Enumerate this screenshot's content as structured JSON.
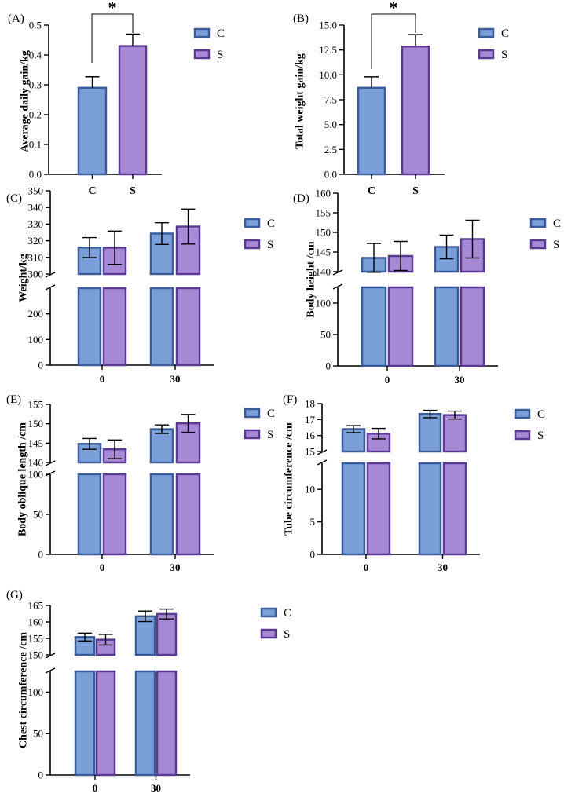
{
  "chart_data": [
    {
      "panel": "(A)",
      "type": "bar",
      "ylabel": "Average daily gain/kg",
      "categories": [
        "C",
        "S"
      ],
      "values": [
        0.29,
        0.43
      ],
      "errors": [
        0.037,
        0.04
      ],
      "ylim": [
        0,
        0.5
      ],
      "yticks": [
        "0.0",
        "0.1",
        "0.2",
        "0.3",
        "0.4",
        "0.5"
      ],
      "significance": "*",
      "legend": [
        "C",
        "S"
      ]
    },
    {
      "panel": "(B)",
      "type": "bar",
      "ylabel": "Total weight gain/kg",
      "categories": [
        "C",
        "S"
      ],
      "values": [
        8.7,
        12.85
      ],
      "errors": [
        1.1,
        1.2
      ],
      "ylim": [
        0,
        15
      ],
      "yticks": [
        "0.0",
        "2.5",
        "5.0",
        "7.5",
        "10.0",
        "12.5",
        "15.0"
      ],
      "significance": "*",
      "legend": [
        "C",
        "S"
      ]
    },
    {
      "panel": "(C)",
      "type": "bar",
      "ylabel": "Weight/kg",
      "categories": [
        "0",
        "30"
      ],
      "series": [
        {
          "name": "C",
          "values": [
            315.9,
            324.3
          ],
          "errors": [
            6,
            6.5
          ]
        },
        {
          "name": "S",
          "values": [
            315.8,
            328.5
          ],
          "errors": [
            10,
            10.5
          ]
        }
      ],
      "ylim": [
        0,
        350
      ],
      "axis_break": [
        300,
        300
      ],
      "yticks_lower": [
        "0",
        "100",
        "200"
      ],
      "yticks_upper": [
        "300",
        "310",
        "320",
        "330",
        "340",
        "350"
      ],
      "legend": [
        "C",
        "S"
      ]
    },
    {
      "panel": "(D)",
      "type": "bar",
      "ylabel": "Body height /cm",
      "categories": [
        "0",
        "30"
      ],
      "series": [
        {
          "name": "C",
          "values": [
            143.5,
            146.3
          ],
          "errors": [
            3.7,
            3
          ]
        },
        {
          "name": "S",
          "values": [
            144,
            148.3
          ],
          "errors": [
            3.7,
            4.8
          ]
        }
      ],
      "ylim": [
        0,
        160
      ],
      "axis_break": [
        125,
        140
      ],
      "yticks_lower": [
        "0",
        "50",
        "100"
      ],
      "yticks_upper": [
        "140",
        "145",
        "150",
        "155",
        "160"
      ],
      "legend": [
        "C",
        "S"
      ]
    },
    {
      "panel": "(E)",
      "type": "bar",
      "ylabel": "Body oblique length /cm",
      "categories": [
        "0",
        "30"
      ],
      "series": [
        {
          "name": "C",
          "values": [
            144.8,
            148.6
          ],
          "errors": [
            1.4,
            1.1
          ]
        },
        {
          "name": "S",
          "values": [
            143.4,
            150.1
          ],
          "errors": [
            2.4,
            2.3
          ]
        }
      ],
      "ylim": [
        0,
        155
      ],
      "axis_break": [
        100,
        140
      ],
      "yticks_lower": [
        "0",
        "50",
        "100"
      ],
      "yticks_upper": [
        "140",
        "145",
        "150",
        "155"
      ],
      "legend": [
        "C",
        "S"
      ]
    },
    {
      "panel": "(F)",
      "type": "bar",
      "ylabel": "Tube circumference /cm",
      "categories": [
        "0",
        "30"
      ],
      "series": [
        {
          "name": "C",
          "values": [
            16.4,
            17.35
          ],
          "errors": [
            0.22,
            0.23
          ]
        },
        {
          "name": "S",
          "values": [
            16.12,
            17.28
          ],
          "errors": [
            0.33,
            0.25
          ]
        }
      ],
      "ylim": [
        0,
        18
      ],
      "axis_break": [
        14,
        15
      ],
      "yticks_lower": [
        "0",
        "5",
        "10"
      ],
      "yticks_upper": [
        "15",
        "16",
        "17",
        "18"
      ],
      "legend": [
        "C",
        "S"
      ]
    },
    {
      "panel": "(G)",
      "type": "bar",
      "ylabel": "Chest circumference /cm",
      "categories": [
        "0",
        "30"
      ],
      "series": [
        {
          "name": "C",
          "values": [
            155.4,
            161.7
          ],
          "errors": [
            1.2,
            1.6
          ]
        },
        {
          "name": "S",
          "values": [
            154.6,
            162.4
          ],
          "errors": [
            1.6,
            1.5
          ]
        }
      ],
      "ylim": [
        0,
        165
      ],
      "axis_break": [
        125,
        150
      ],
      "yticks_lower": [
        "0",
        "50",
        "100"
      ],
      "yticks_upper": [
        "150",
        "155",
        "160",
        "165"
      ],
      "legend": [
        "C",
        "S"
      ]
    }
  ],
  "colors": {
    "C_fill": "#7b9fd9",
    "C_edge": "#3a5d9a",
    "S_fill": "#a889d6",
    "S_edge": "#5a3a93",
    "axis": "#000000"
  }
}
